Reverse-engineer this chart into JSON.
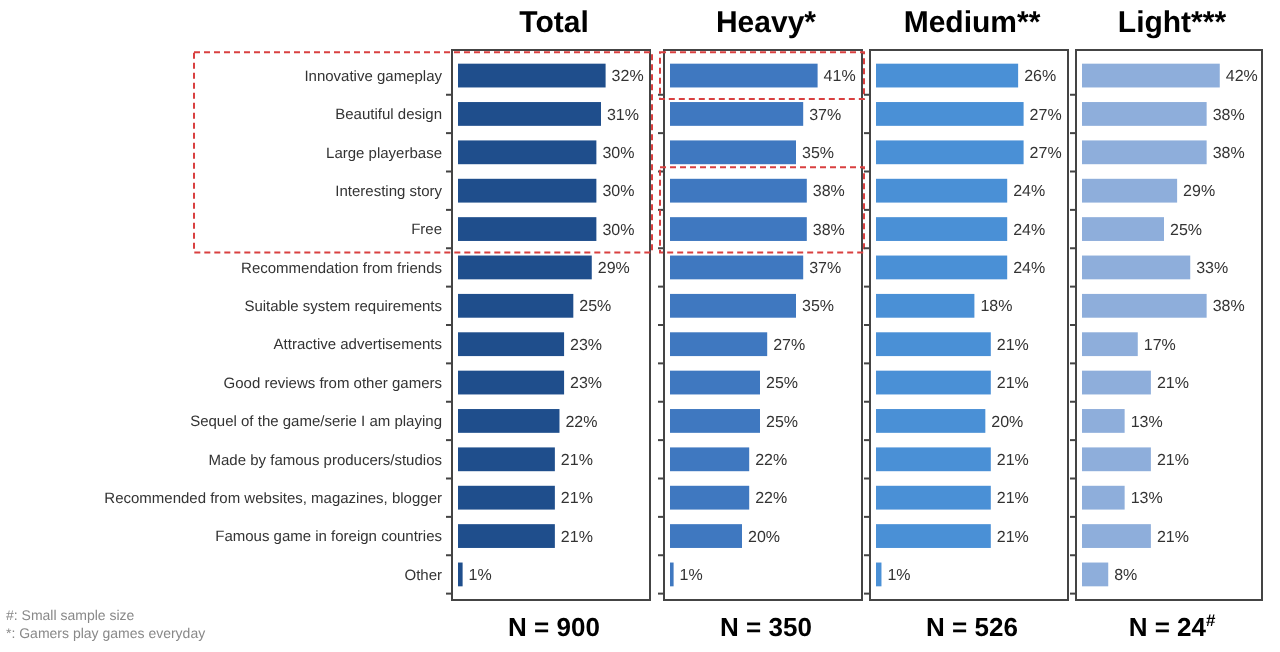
{
  "chart_data": [
    {
      "type": "bar",
      "orientation": "horizontal",
      "title": "Total",
      "xlabel": "N = 900",
      "categories": [
        "Innovative gameplay",
        "Beautiful design",
        "Large playerbase",
        "Interesting story",
        "Free",
        "Recommendation from friends",
        "Suitable system requirements",
        "Attractive advertisements",
        "Good reviews from other gamers",
        "Sequel of the game/serie I am playing",
        "Made by famous producers/studios",
        "Recommended from websites, magazines, blogger",
        "Famous game in foreign countries",
        "Other"
      ],
      "tick_labels": "y",
      "color": "#1f4e8c",
      "values": [
        32,
        31,
        30,
        30,
        30,
        29,
        25,
        23,
        23,
        22,
        21,
        21,
        21,
        1
      ],
      "value_labels": [
        "32%",
        "31%",
        "30%",
        "30%",
        "30%",
        "29%",
        "25%",
        "23%",
        "23%",
        "22%",
        "21%",
        "21%",
        "21%",
        "1%"
      ],
      "annotations": [
        "#: Small sample size",
        "*: Gamers play games everyday"
      ]
    },
    {
      "type": "bar",
      "orientation": "horizontal",
      "title": "Heavy*",
      "xlabel": "N = 350",
      "categories": [
        null,
        null,
        null,
        null,
        null,
        null,
        null,
        null,
        null,
        null,
        null,
        null,
        null,
        null
      ],
      "color": "#3f78c0",
      "values": [
        41,
        37,
        35,
        38,
        38,
        37,
        35,
        27,
        25,
        25,
        22,
        22,
        20,
        1
      ],
      "value_labels": [
        "41%",
        "37%",
        "35%",
        "38%",
        "38%",
        "37%",
        "35%",
        "27%",
        "25%",
        "25%",
        "22%",
        "22%",
        "20%",
        "1%"
      ]
    },
    {
      "type": "bar",
      "orientation": "horizontal",
      "title": "Medium**",
      "xlabel": "N = 526",
      "categories": [
        null,
        null,
        null,
        null,
        null,
        null,
        null,
        null,
        null,
        null,
        null,
        null,
        null,
        null
      ],
      "color": "#4a90d6",
      "values": [
        26,
        27,
        27,
        24,
        24,
        24,
        18,
        21,
        21,
        20,
        21,
        21,
        21,
        1
      ],
      "value_labels": [
        "26%",
        "27%",
        "27%",
        "24%",
        "24%",
        "24%",
        "18%",
        "21%",
        "21%",
        "20%",
        "21%",
        "21%",
        "21%",
        "1%"
      ]
    },
    {
      "type": "bar",
      "orientation": "horizontal",
      "title": "Light***",
      "xlabel": "N = 24$^{#}$",
      "categories": [
        null,
        null,
        null,
        null,
        null,
        null,
        null,
        null,
        null,
        null,
        null,
        null,
        null,
        null
      ],
      "color": "#8eaedb",
      "values": [
        42,
        38,
        38,
        29,
        25,
        33,
        38,
        17,
        21,
        13,
        21,
        13,
        21,
        8
      ],
      "value_labels": [
        "42%",
        "38%",
        "38%",
        "29%",
        "25%",
        "33%",
        "38%",
        "17%",
        "21%",
        "13%",
        "21%",
        "13%",
        "21%",
        "8%"
      ]
    }
  ]
}
